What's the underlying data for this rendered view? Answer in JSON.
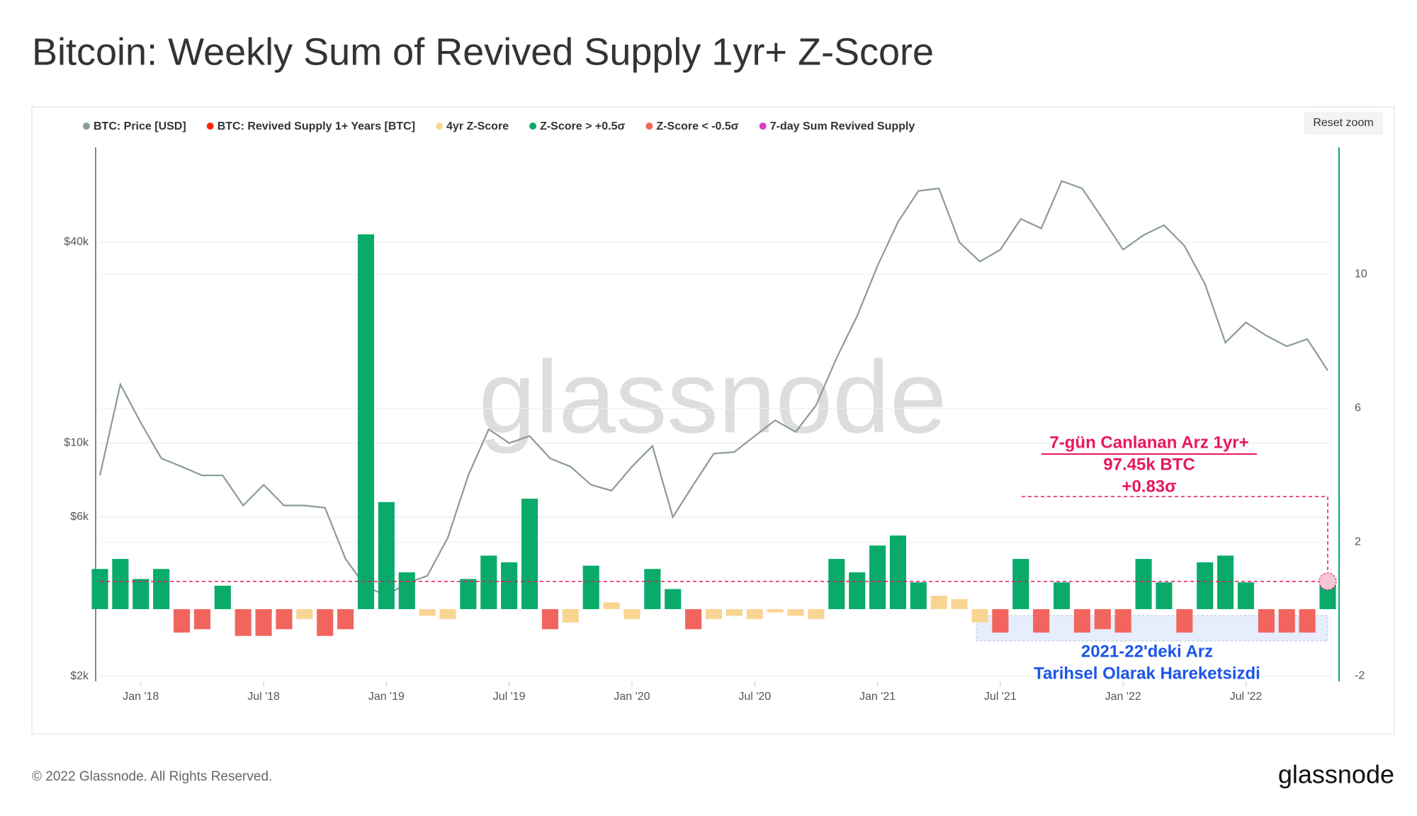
{
  "title": "Bitcoin: Weekly Sum of Revived Supply 1yr+ Z-Score",
  "footer": "© 2022 Glassnode. All Rights Reserved.",
  "logo": "glassnode",
  "reset_zoom": "Reset zoom",
  "chart_data": {
    "type": "line",
    "watermark": "glassnode",
    "x": [
      "2017-11",
      "2017-12",
      "2018-01",
      "2018-02",
      "2018-03",
      "2018-04",
      "2018-05",
      "2018-06",
      "2018-07",
      "2018-08",
      "2018-09",
      "2018-10",
      "2018-11",
      "2018-12",
      "2019-01",
      "2019-02",
      "2019-03",
      "2019-04",
      "2019-05",
      "2019-06",
      "2019-07",
      "2019-08",
      "2019-09",
      "2019-10",
      "2019-11",
      "2019-12",
      "2020-01",
      "2020-02",
      "2020-03",
      "2020-04",
      "2020-05",
      "2020-06",
      "2020-07",
      "2020-08",
      "2020-09",
      "2020-10",
      "2020-11",
      "2020-12",
      "2021-01",
      "2021-02",
      "2021-03",
      "2021-04",
      "2021-05",
      "2021-06",
      "2021-07",
      "2021-08",
      "2021-09",
      "2021-10",
      "2021-11",
      "2021-12",
      "2022-01",
      "2022-02",
      "2022-03",
      "2022-04",
      "2022-05",
      "2022-06",
      "2022-07",
      "2022-08",
      "2022-09",
      "2022-10",
      "2022-11"
    ],
    "xticks": [
      {
        "value": "2018-01",
        "label": "Jan '18"
      },
      {
        "value": "2018-07",
        "label": "Jul '18"
      },
      {
        "value": "2019-01",
        "label": "Jan '19"
      },
      {
        "value": "2019-07",
        "label": "Jul '19"
      },
      {
        "value": "2020-01",
        "label": "Jan '20"
      },
      {
        "value": "2020-07",
        "label": "Jul '20"
      },
      {
        "value": "2021-01",
        "label": "Jan '21"
      },
      {
        "value": "2021-07",
        "label": "Jul '21"
      },
      {
        "value": "2022-01",
        "label": "Jan '22"
      },
      {
        "value": "2022-07",
        "label": "Jul '22"
      }
    ],
    "ylog": true,
    "ylim": [
      1930,
      77000
    ],
    "yticks": [
      {
        "value": 2000,
        "label": "$2k"
      },
      {
        "value": 6000,
        "label": "$6k"
      },
      {
        "value": 10000,
        "label": "$10k"
      },
      {
        "value": 40000,
        "label": "$40k"
      }
    ],
    "y2lim": [
      -2.16,
      13.8
    ],
    "y2ticks": [
      -2,
      2,
      6,
      10
    ],
    "grid": true,
    "series": [
      {
        "name": "BTC: Price [USD]",
        "color": "#8a999e",
        "axis": "y",
        "values": [
          8000,
          15000,
          11500,
          9000,
          8500,
          8000,
          8000,
          6500,
          7500,
          6500,
          6500,
          6400,
          4500,
          3700,
          3500,
          3800,
          4000,
          5200,
          8000,
          11000,
          10000,
          10500,
          9000,
          8500,
          7500,
          7200,
          8500,
          9800,
          6000,
          7500,
          9300,
          9400,
          10500,
          11700,
          10800,
          13000,
          18000,
          24000,
          34000,
          46000,
          57000,
          58000,
          40000,
          35000,
          38000,
          47000,
          44000,
          61000,
          58000,
          47000,
          38000,
          42000,
          45000,
          39000,
          30000,
          20000,
          23000,
          21000,
          19500,
          20500,
          16500
        ]
      },
      {
        "name": "BTC: Revived Supply 1+ Years [BTC]",
        "color": "#f5290a",
        "hidden": true
      },
      {
        "name": "4yr Z-Score",
        "color": "#f9d593",
        "axis": "y2",
        "type": "bar",
        "values": [
          null,
          null,
          null,
          null,
          null,
          null,
          null,
          null,
          null,
          null,
          -0.3,
          null,
          null,
          null,
          null,
          null,
          -0.2,
          -0.3,
          null,
          null,
          null,
          null,
          null,
          -0.4,
          null,
          0.2,
          -0.3,
          null,
          null,
          null,
          -0.3,
          -0.2,
          -0.3,
          -0.1,
          -0.2,
          -0.3,
          null,
          null,
          null,
          null,
          null,
          0.4,
          0.3,
          -0.4,
          null,
          null,
          null,
          null,
          null,
          null,
          null,
          null,
          null,
          null,
          null,
          null,
          null,
          null,
          null,
          null,
          null
        ]
      },
      {
        "name": "Z-Score > +0.5σ",
        "color": "#0aab6a",
        "axis": "y2",
        "type": "bar",
        "values": [
          1.2,
          1.5,
          0.9,
          1.2,
          null,
          null,
          0.7,
          null,
          null,
          null,
          null,
          null,
          null,
          11.2,
          3.2,
          1.1,
          null,
          null,
          0.9,
          1.6,
          1.4,
          3.3,
          null,
          null,
          1.3,
          null,
          null,
          1.2,
          0.6,
          null,
          null,
          null,
          null,
          null,
          null,
          null,
          1.5,
          1.1,
          1.9,
          2.2,
          0.8,
          null,
          null,
          null,
          null,
          1.5,
          null,
          0.8,
          null,
          null,
          null,
          1.5,
          0.8,
          null,
          1.4,
          1.6,
          0.8,
          null,
          null,
          null,
          0.83
        ]
      },
      {
        "name": "Z-Score < -0.5σ",
        "color": "#f2655e",
        "axis": "y2",
        "type": "bar",
        "values": [
          null,
          null,
          null,
          null,
          -0.7,
          -0.6,
          null,
          -0.8,
          -0.8,
          -0.6,
          null,
          -0.8,
          -0.6,
          null,
          null,
          null,
          null,
          null,
          null,
          null,
          null,
          null,
          -0.6,
          null,
          null,
          null,
          null,
          null,
          null,
          -0.6,
          null,
          null,
          null,
          null,
          null,
          null,
          null,
          null,
          null,
          null,
          null,
          null,
          null,
          null,
          -0.7,
          null,
          -0.7,
          null,
          -0.7,
          -0.6,
          -0.7,
          null,
          null,
          -0.7,
          null,
          null,
          null,
          -0.7,
          -0.7,
          -0.7,
          null
        ]
      },
      {
        "name": "7-day Sum Revived Supply",
        "color": "#d63fbf",
        "hidden": true
      }
    ],
    "annotations": [
      {
        "lines": [
          "7-gün Canlanan Arz 1yr+",
          "97.45k BTC",
          "+0.83σ"
        ],
        "color": "#e8175d"
      },
      {
        "lines": [
          "2021-22'deki Arz",
          "Tarihsel Olarak Hareketsizdi"
        ],
        "color": "#1a56e8"
      }
    ]
  }
}
